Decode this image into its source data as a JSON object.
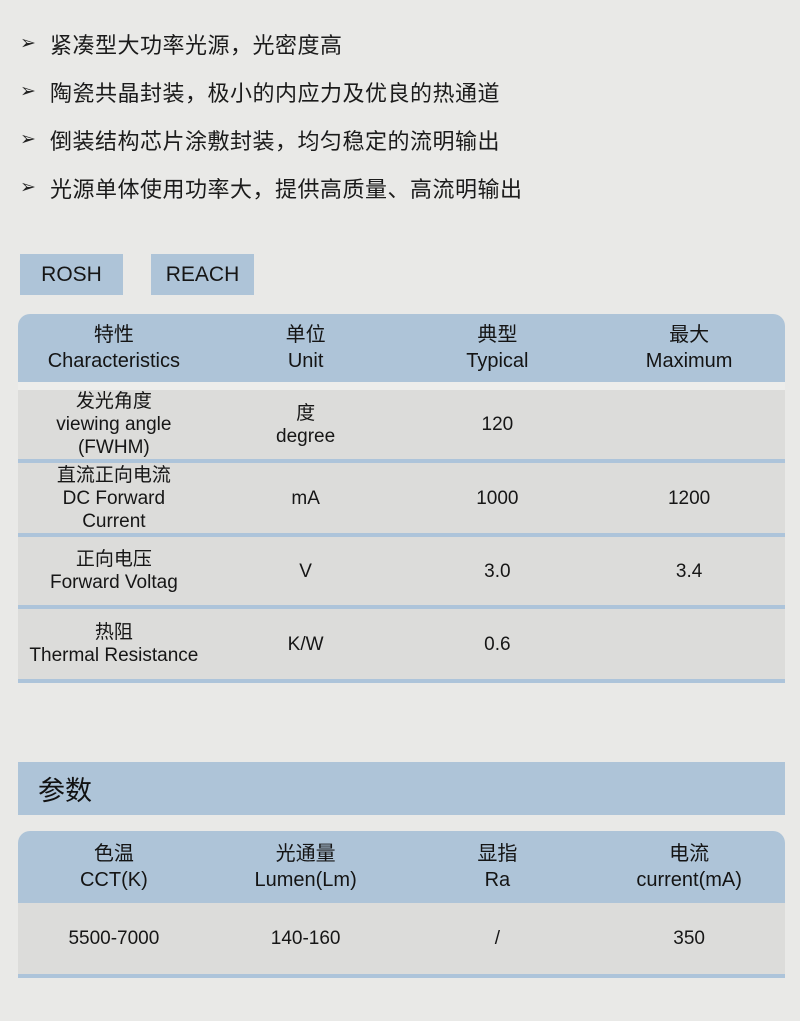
{
  "theme": {
    "page_bg": "#e9e9e7",
    "accent_blue": "#aec4d8",
    "row_gray": "#dcdcda",
    "separator_blue": "#adc4da",
    "text_color": "#1b1b1b"
  },
  "bullets": {
    "marker": "➢",
    "items": [
      "紧凑型大功率光源，光密度高",
      "陶瓷共晶封装，极小的内应力及优良的热通道",
      "倒装结构芯片涂敷封装，均匀稳定的流明输出",
      "光源单体使用功率大，提供高质量、高流明输出"
    ]
  },
  "badges": [
    {
      "label": "ROSH"
    },
    {
      "label": "REACH"
    }
  ],
  "spec_table": {
    "headers": [
      "特性\nCharacteristics",
      "单位\nUnit",
      "典型\nTypical",
      "最大\nMaximum"
    ],
    "rows": [
      [
        "发光角度\nviewing angle\n(FWHM)",
        "度\ndegree",
        "120",
        ""
      ],
      [
        "直流正向电流\nDC Forward\nCurrent",
        "mA",
        "1000",
        "1200"
      ],
      [
        "正向电压\nForward Voltag",
        "V",
        "3.0",
        "3.4"
      ],
      [
        "热阻\nThermal Resistance",
        "K/W",
        "0.6",
        ""
      ]
    ]
  },
  "params_section": {
    "title": "参数",
    "table": {
      "headers": [
        "色温\nCCT(K)",
        "光通量\nLumen(Lm)",
        "显指\nRa",
        "电流\ncurrent(mA)"
      ],
      "rows": [
        [
          "5500-7000",
          "140-160",
          "/",
          "350"
        ]
      ]
    }
  }
}
